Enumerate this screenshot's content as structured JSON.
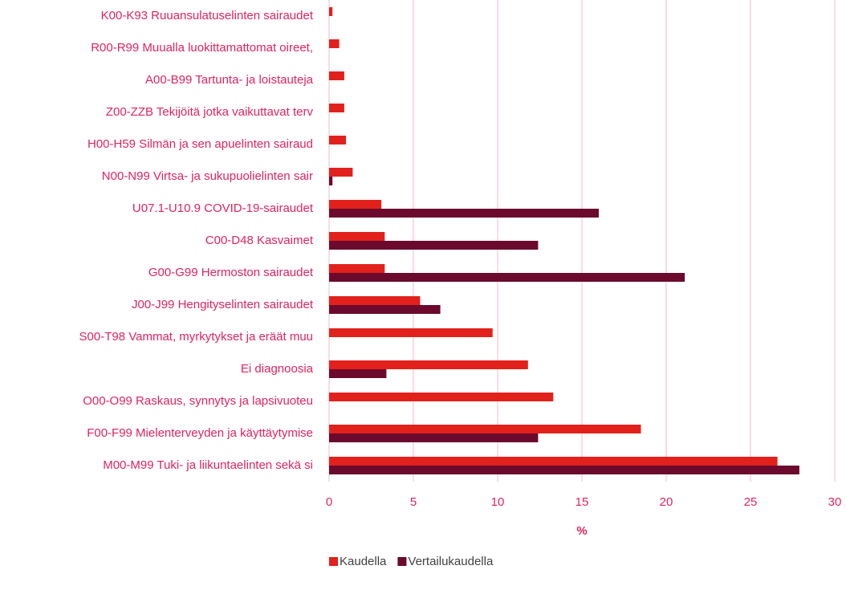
{
  "chart_data": {
    "type": "barh",
    "categories": [
      "K00-K93 Ruuansulatuselinten sairaudet",
      "R00-R99 Muualla luokittamattomat oireet,",
      "A00-B99 Tartunta- ja loistauteja",
      "Z00-ZZB Tekijöitä jotka vaikuttavat terv",
      "H00-H59 Silmän ja sen apuelinten sairaud",
      "N00-N99 Virtsa- ja sukupuolielinten sair",
      "U07.1-U10.9 COVID-19-sairaudet",
      "C00-D48 Kasvaimet",
      "G00-G99 Hermoston sairaudet",
      "J00-J99 Hengityselinten sairaudet",
      "S00-T98 Vammat, myrkytykset ja eräät muu",
      "Ei diagnoosia",
      "O00-O99 Raskaus, synnytys ja lapsivuoteu",
      "F00-F99 Mielenterveyden ja käyttäytymise",
      "M00-M99 Tuki- ja liikuntaelinten sekä si"
    ],
    "series": [
      {
        "name": "Kaudella",
        "color": "#e2211c",
        "values": [
          0.2,
          0.6,
          0.9,
          0.9,
          1.0,
          1.4,
          3.1,
          3.3,
          3.3,
          5.4,
          9.7,
          11.8,
          13.3,
          18.5,
          26.6
        ]
      },
      {
        "name": "Vertailukaudella",
        "color": "#6b0a2c",
        "values": [
          0,
          0,
          0,
          0,
          0,
          0.2,
          16.0,
          12.4,
          21.1,
          6.6,
          0,
          3.4,
          0,
          12.4,
          27.9
        ]
      }
    ],
    "xlabel": "%",
    "xlim": [
      0,
      30
    ],
    "xticks": [
      0,
      5,
      10,
      15,
      20,
      25,
      30
    ],
    "grid": true,
    "legend": "bottom"
  }
}
